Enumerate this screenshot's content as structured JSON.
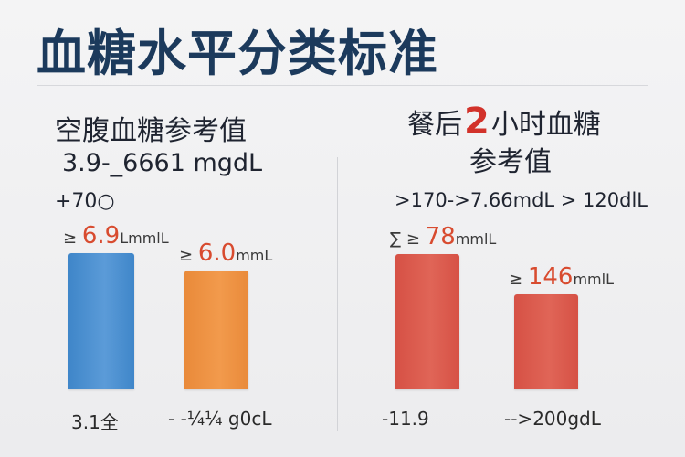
{
  "title": "血糖水平分类标准",
  "left_panel": {
    "title": "空腹血糖参考值",
    "range_text": "3.9-_6661 mgdL",
    "note": "+70○",
    "bottom_labels": [
      "3.1全",
      "- -¼¼ g0cL"
    ]
  },
  "right_panel": {
    "title_prefix": "餐后",
    "title_number": "2",
    "title_suffix": "小时血糖",
    "title_line2": "参考值",
    "range_text": ">170->7.66mdL > 120dlL",
    "bottom_labels": [
      "-11.9",
      "-->200gdL"
    ]
  },
  "colors": {
    "title": "#1c3a5c",
    "blue_bar": "#3f86c9",
    "orange_bar": "#e98a3a",
    "red_bar": "#d65145",
    "value_text": "#d84b2f"
  },
  "chart_data": [
    {
      "type": "bar",
      "title": "空腹血糖参考值",
      "categories": [
        "3.1全",
        "- -¼¼ g0cL"
      ],
      "values": [
        6.9,
        6.0
      ],
      "value_labels": [
        {
          "prefix": "≥",
          "value": "6.9",
          "unit": "LmmlL"
        },
        {
          "prefix": "≥",
          "value": "6.0",
          "unit": "mmL"
        }
      ],
      "colors": [
        "#3f86c9",
        "#e98a3a"
      ],
      "ylim": [
        0,
        12
      ]
    },
    {
      "type": "bar",
      "title": "餐后2小时血糖参考值",
      "categories": [
        "-11.9",
        "-->200gdL"
      ],
      "values": [
        78,
        146
      ],
      "value_labels": [
        {
          "prefix": "∑ ≥",
          "value": "78",
          "unit": "mmlL"
        },
        {
          "prefix": "≥",
          "value": "146",
          "unit": "mmlL"
        }
      ],
      "colors": [
        "#d65145",
        "#d65145"
      ]
    }
  ]
}
